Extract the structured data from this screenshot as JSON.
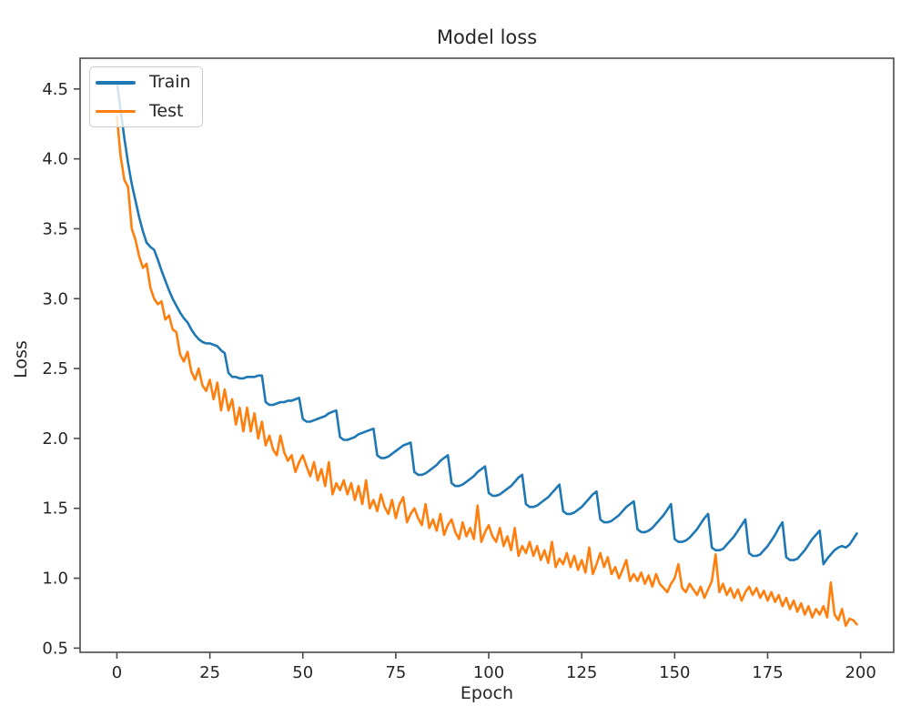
{
  "figure": {
    "background_color": "#ffffff",
    "text_color": "#262626",
    "spine_color": "#4a4a4a",
    "legend_border_color": "#cccccc"
  },
  "chart_data": {
    "type": "line",
    "title": "Model loss",
    "xlabel": "Epoch",
    "ylabel": "Loss",
    "legend_position": "upper left",
    "grid": false,
    "xlim": [
      -9.9,
      208.9
    ],
    "ylim": [
      0.47,
      4.72
    ],
    "xticks": [
      "0",
      "25",
      "50",
      "75",
      "100",
      "125",
      "150",
      "175",
      "200"
    ],
    "xtick_values": [
      0,
      25,
      50,
      75,
      100,
      125,
      150,
      175,
      200
    ],
    "yticks": [
      "0.5",
      "1.0",
      "1.5",
      "2.0",
      "2.5",
      "3.0",
      "3.5",
      "4.0",
      "4.5"
    ],
    "ytick_values": [
      0.5,
      1.0,
      1.5,
      2.0,
      2.5,
      3.0,
      3.5,
      4.0,
      4.5
    ],
    "x_start_epoch": 0,
    "series": [
      {
        "name": "Train",
        "color": "#1f77b4",
        "values": [
          4.55,
          4.35,
          4.15,
          3.97,
          3.82,
          3.7,
          3.58,
          3.48,
          3.4,
          3.37,
          3.35,
          3.28,
          3.2,
          3.13,
          3.06,
          3.0,
          2.95,
          2.9,
          2.86,
          2.83,
          2.78,
          2.74,
          2.71,
          2.69,
          2.68,
          2.68,
          2.67,
          2.66,
          2.63,
          2.61,
          2.47,
          2.44,
          2.44,
          2.43,
          2.43,
          2.44,
          2.44,
          2.44,
          2.45,
          2.45,
          2.26,
          2.24,
          2.24,
          2.25,
          2.26,
          2.26,
          2.27,
          2.27,
          2.28,
          2.29,
          2.14,
          2.12,
          2.12,
          2.13,
          2.14,
          2.15,
          2.16,
          2.18,
          2.19,
          2.2,
          2.01,
          1.99,
          1.99,
          2.0,
          2.01,
          2.03,
          2.04,
          2.05,
          2.06,
          2.07,
          1.88,
          1.86,
          1.86,
          1.87,
          1.89,
          1.91,
          1.93,
          1.95,
          1.96,
          1.97,
          1.76,
          1.74,
          1.74,
          1.75,
          1.77,
          1.79,
          1.81,
          1.84,
          1.86,
          1.88,
          1.68,
          1.66,
          1.66,
          1.67,
          1.69,
          1.71,
          1.73,
          1.76,
          1.78,
          1.8,
          1.61,
          1.59,
          1.59,
          1.6,
          1.62,
          1.64,
          1.66,
          1.69,
          1.72,
          1.74,
          1.53,
          1.51,
          1.51,
          1.52,
          1.54,
          1.56,
          1.58,
          1.61,
          1.64,
          1.67,
          1.48,
          1.46,
          1.46,
          1.47,
          1.49,
          1.51,
          1.54,
          1.57,
          1.6,
          1.62,
          1.42,
          1.4,
          1.4,
          1.41,
          1.43,
          1.45,
          1.48,
          1.51,
          1.53,
          1.55,
          1.35,
          1.33,
          1.33,
          1.34,
          1.36,
          1.39,
          1.42,
          1.45,
          1.49,
          1.53,
          1.28,
          1.26,
          1.26,
          1.27,
          1.29,
          1.32,
          1.35,
          1.39,
          1.43,
          1.46,
          1.22,
          1.2,
          1.2,
          1.21,
          1.24,
          1.27,
          1.3,
          1.34,
          1.38,
          1.42,
          1.18,
          1.16,
          1.16,
          1.17,
          1.2,
          1.23,
          1.27,
          1.31,
          1.36,
          1.4,
          1.15,
          1.13,
          1.13,
          1.14,
          1.17,
          1.2,
          1.24,
          1.28,
          1.31,
          1.34,
          1.1,
          1.14,
          1.17,
          1.2,
          1.22,
          1.23,
          1.22,
          1.24,
          1.28,
          1.32
        ]
      },
      {
        "name": "Test",
        "color": "#ff7f0e",
        "values": [
          4.3,
          4.02,
          3.85,
          3.8,
          3.5,
          3.42,
          3.3,
          3.22,
          3.25,
          3.08,
          3.0,
          2.96,
          2.98,
          2.85,
          2.88,
          2.78,
          2.76,
          2.6,
          2.55,
          2.62,
          2.48,
          2.42,
          2.5,
          2.38,
          2.34,
          2.42,
          2.28,
          2.4,
          2.2,
          2.35,
          2.2,
          2.28,
          2.1,
          2.22,
          2.05,
          2.22,
          2.05,
          2.18,
          2.0,
          2.12,
          1.95,
          2.02,
          1.92,
          1.88,
          2.02,
          1.9,
          1.84,
          1.88,
          1.76,
          1.83,
          1.88,
          1.8,
          1.73,
          1.83,
          1.7,
          1.78,
          1.66,
          1.83,
          1.6,
          1.68,
          1.63,
          1.7,
          1.6,
          1.68,
          1.56,
          1.66,
          1.53,
          1.7,
          1.5,
          1.56,
          1.48,
          1.6,
          1.51,
          1.46,
          1.56,
          1.43,
          1.53,
          1.58,
          1.4,
          1.46,
          1.5,
          1.43,
          1.38,
          1.53,
          1.36,
          1.42,
          1.34,
          1.46,
          1.31,
          1.38,
          1.42,
          1.33,
          1.28,
          1.4,
          1.3,
          1.36,
          1.28,
          1.52,
          1.26,
          1.33,
          1.38,
          1.3,
          1.26,
          1.36,
          1.23,
          1.3,
          1.2,
          1.36,
          1.16,
          1.23,
          1.18,
          1.26,
          1.16,
          1.23,
          1.13,
          1.2,
          1.11,
          1.26,
          1.08,
          1.14,
          1.1,
          1.18,
          1.08,
          1.16,
          1.06,
          1.13,
          1.04,
          1.22,
          1.03,
          1.1,
          1.18,
          1.08,
          1.15,
          1.03,
          1.08,
          1.0,
          1.06,
          1.13,
          0.98,
          1.03,
          0.98,
          1.04,
          0.96,
          1.02,
          0.94,
          1.03,
          0.96,
          0.93,
          0.9,
          0.96,
          1.0,
          1.1,
          0.93,
          0.9,
          0.96,
          0.92,
          0.88,
          0.94,
          0.86,
          0.92,
          0.98,
          1.17,
          0.9,
          0.96,
          0.88,
          0.93,
          0.86,
          0.92,
          0.84,
          0.9,
          0.94,
          0.88,
          0.93,
          0.86,
          0.91,
          0.84,
          0.9,
          0.83,
          0.88,
          0.8,
          0.86,
          0.78,
          0.84,
          0.76,
          0.82,
          0.74,
          0.8,
          0.72,
          0.78,
          0.74,
          0.8,
          0.72,
          0.97,
          0.74,
          0.7,
          0.78,
          0.66,
          0.71,
          0.7,
          0.67
        ]
      }
    ]
  }
}
